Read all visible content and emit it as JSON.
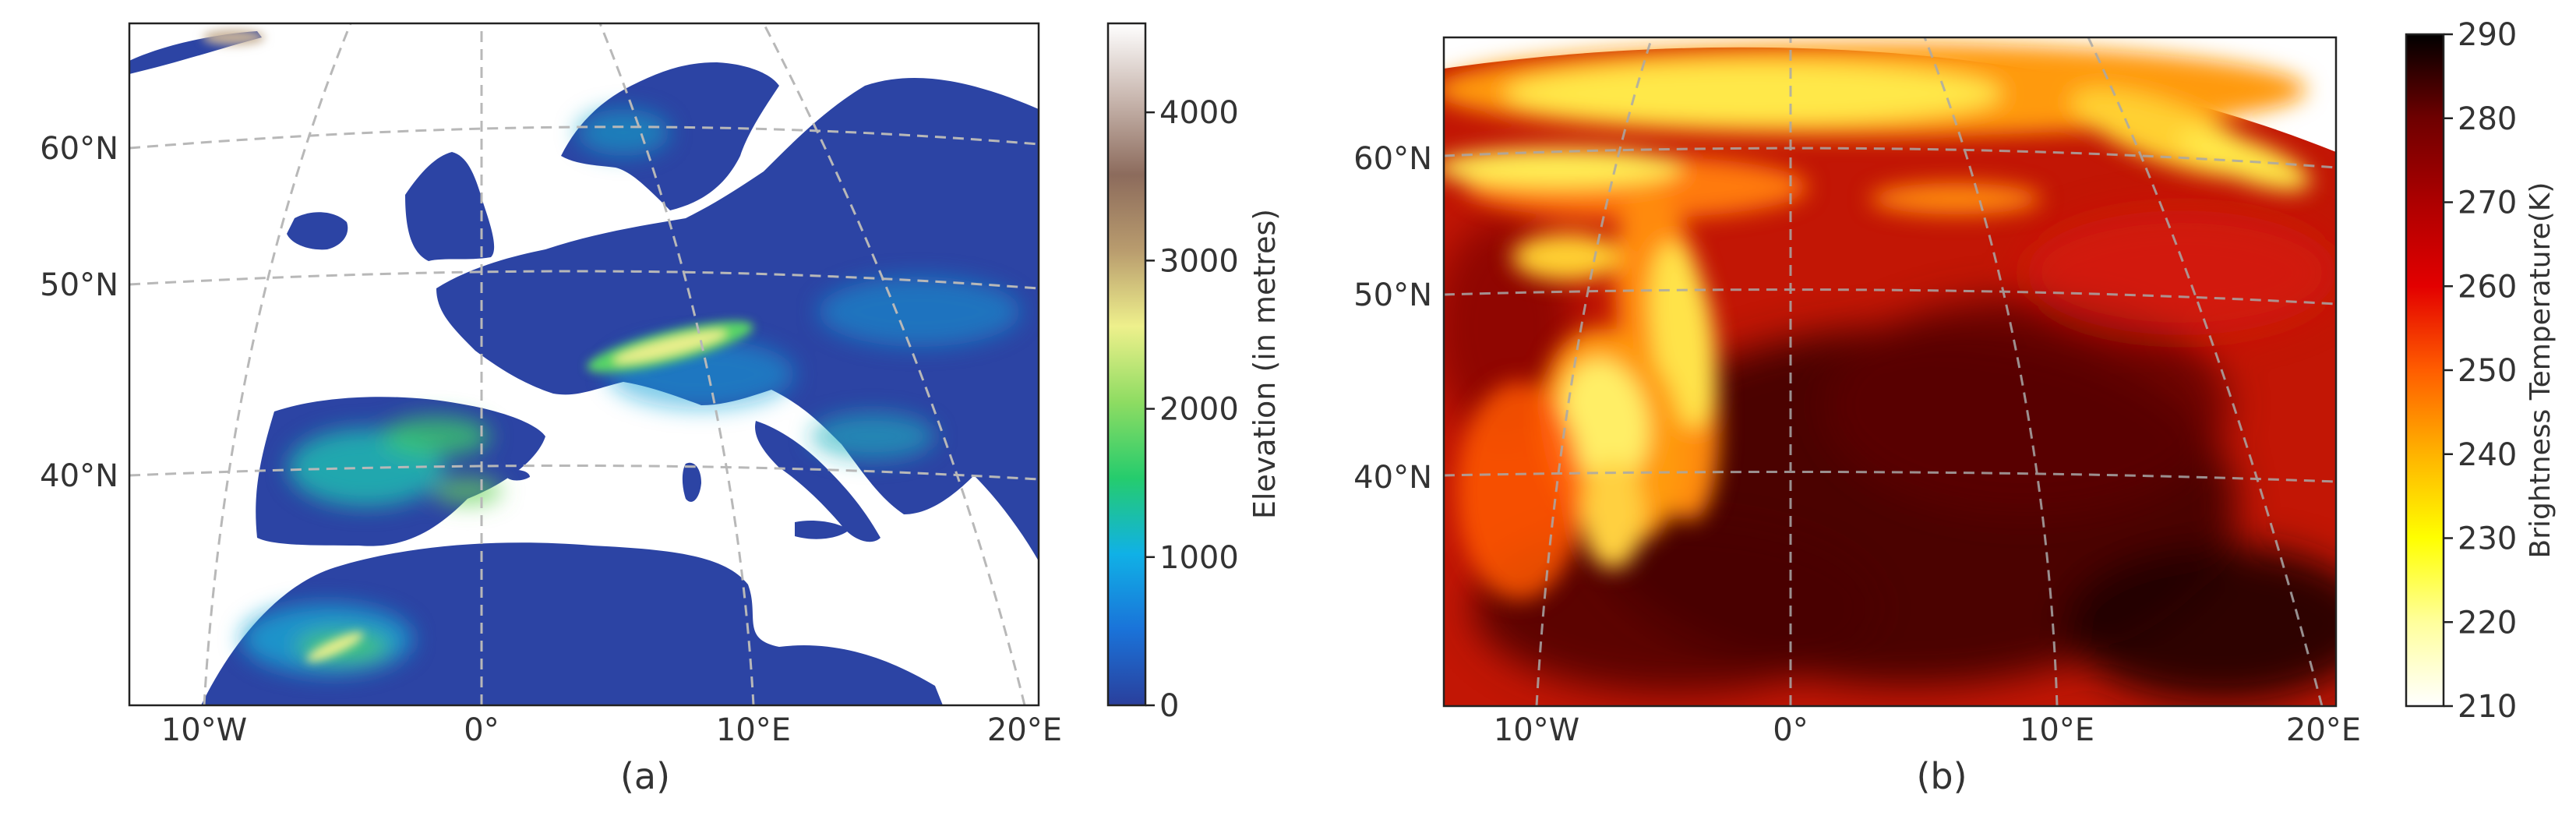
{
  "panels": [
    {
      "id": "a",
      "caption": "(a)",
      "lat_labels": [
        "60°N",
        "50°N",
        "40°N"
      ],
      "lon_labels": [
        "10°W",
        "0°",
        "10°E",
        "20°E"
      ],
      "colorbar": {
        "label": "Elevation (in metres)",
        "tick_labels": [
          "0",
          "1000",
          "2000",
          "3000",
          "4000"
        ],
        "tick_values": [
          0,
          1000,
          2000,
          3000,
          4000
        ],
        "range": [
          0,
          4600
        ],
        "colormap": "terrain",
        "colors": [
          "#2a3f9c",
          "#1a73d9",
          "#10b1e6",
          "#25cc6d",
          "#8edc62",
          "#eef08c",
          "#b99c6e",
          "#8c6b5c",
          "#c8b6ae",
          "#ffffff"
        ]
      },
      "sea_color": "#ffffff"
    },
    {
      "id": "b",
      "caption": "(b)",
      "lat_labels": [
        "60°N",
        "50°N",
        "40°N"
      ],
      "lon_labels": [
        "10°W",
        "0°",
        "10°E",
        "20°E"
      ],
      "colorbar": {
        "label": "Brightness Temperature(K)",
        "tick_labels": [
          "210",
          "220",
          "230",
          "240",
          "250",
          "260",
          "270",
          "280",
          "290"
        ],
        "tick_values": [
          210,
          220,
          230,
          240,
          250,
          260,
          270,
          280,
          290
        ],
        "range": [
          210,
          290
        ],
        "colormap": "hot_r",
        "colors": [
          "#ffffff",
          "#ffff9c",
          "#ffff00",
          "#ffb300",
          "#ff5d00",
          "#e30000",
          "#ad0000",
          "#6e0000",
          "#000000"
        ]
      }
    }
  ]
}
